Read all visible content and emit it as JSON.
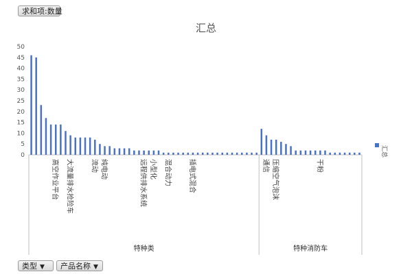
{
  "filters": {
    "value_field": "求和项:数量",
    "row_fields": [
      "类型",
      "产品名称"
    ]
  },
  "chart_data": {
    "type": "bar",
    "title": "汇总",
    "ylim": [
      0,
      50
    ],
    "y_ticks": [
      0,
      5,
      10,
      15,
      20,
      25,
      30,
      35,
      40,
      45,
      50
    ],
    "legend": "right",
    "groups": [
      {
        "label": "特种类",
        "count": 47
      },
      {
        "label": "特种消防车",
        "count": 21
      }
    ],
    "categories": [
      "",
      "",
      "",
      "",
      "",
      "高空作业平台",
      "",
      "",
      "大流量排水抢险车",
      "",
      "",
      "",
      "",
      "流动",
      "",
      "纯电动",
      "",
      "",
      "",
      "",
      "",
      "",
      "",
      "远程供排水系统",
      "",
      "小型化",
      "",
      "",
      "混合动力",
      "",
      "",
      "",
      "",
      "插电式混合",
      "",
      "",
      "",
      "",
      "",
      "",
      "",
      "",
      "",
      "",
      "",
      "",
      "",
      "",
      "通信",
      "",
      "压缩空气泡沫",
      "",
      "",
      "",
      "",
      "",
      "",
      "",
      "",
      "干粉",
      "",
      "",
      "",
      "",
      "",
      "",
      "",
      ""
    ],
    "series": [
      {
        "name": "汇总",
        "color": "#4a72c4",
        "values": [
          46,
          45,
          23,
          17,
          14,
          14,
          14,
          11,
          9,
          8,
          8,
          8,
          8,
          7,
          5,
          4,
          4,
          3,
          3,
          3,
          3,
          2,
          2,
          2,
          2,
          2,
          2,
          1,
          1,
          1,
          1,
          1,
          1,
          1,
          1,
          1,
          1,
          1,
          1,
          1,
          1,
          1,
          1,
          1,
          1,
          1,
          1,
          12,
          9,
          7,
          7,
          6,
          5,
          4,
          2,
          2,
          2,
          2,
          2,
          2,
          2,
          1,
          1,
          1,
          1,
          1,
          1,
          1
        ]
      }
    ]
  },
  "icons": {
    "filter": "filter-icon",
    "dropdown": "dropdown-arrow-icon"
  }
}
